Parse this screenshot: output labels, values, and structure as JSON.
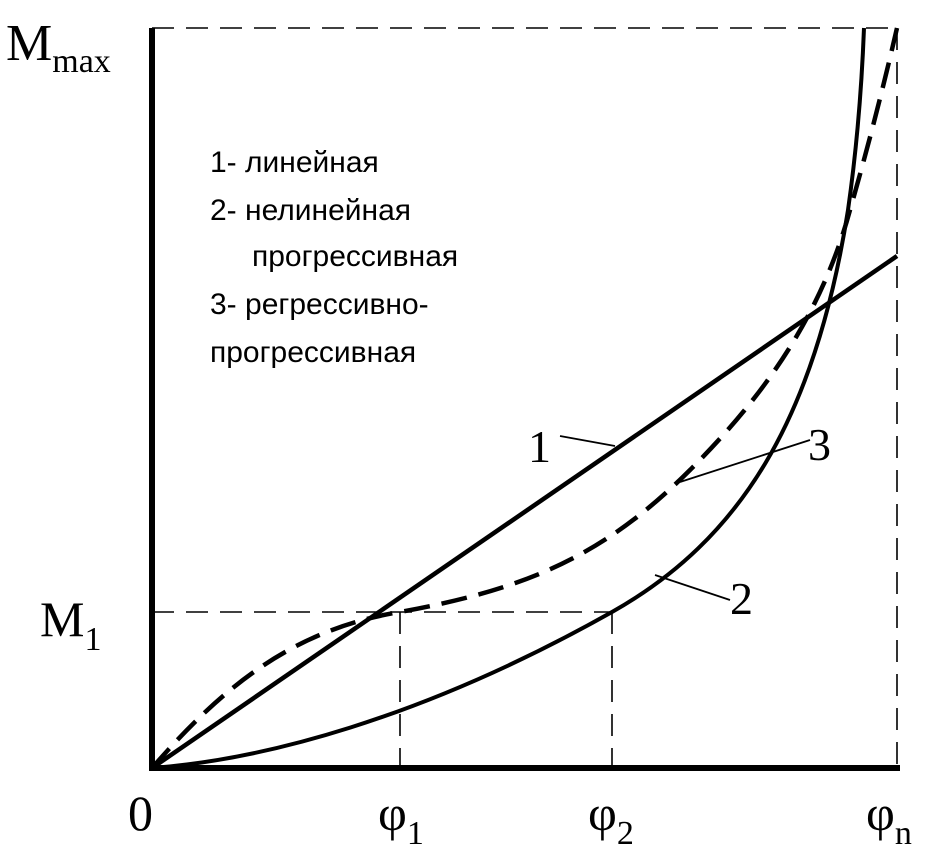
{
  "chart_data": {
    "type": "line",
    "y_axis": {
      "top_label_main": "M",
      "top_label_sub": "max",
      "mid_label_main": "M",
      "mid_label_sub": "1"
    },
    "x_axis": {
      "origin_label": "0",
      "ticks": [
        {
          "main": "φ",
          "sub": "1"
        },
        {
          "main": "φ",
          "sub": "2"
        },
        {
          "main": "φ",
          "sub": "n"
        }
      ]
    },
    "legend": [
      "1- линейная",
      "2- нелинейная",
      "прогрессивная",
      "3- регрессивно-",
      "прогрессивная"
    ],
    "curve_labels": [
      "1",
      "2",
      "3"
    ],
    "series": [
      {
        "name": "1",
        "style": "solid"
      },
      {
        "name": "2",
        "style": "solid"
      },
      {
        "name": "3",
        "style": "dashed"
      }
    ]
  }
}
